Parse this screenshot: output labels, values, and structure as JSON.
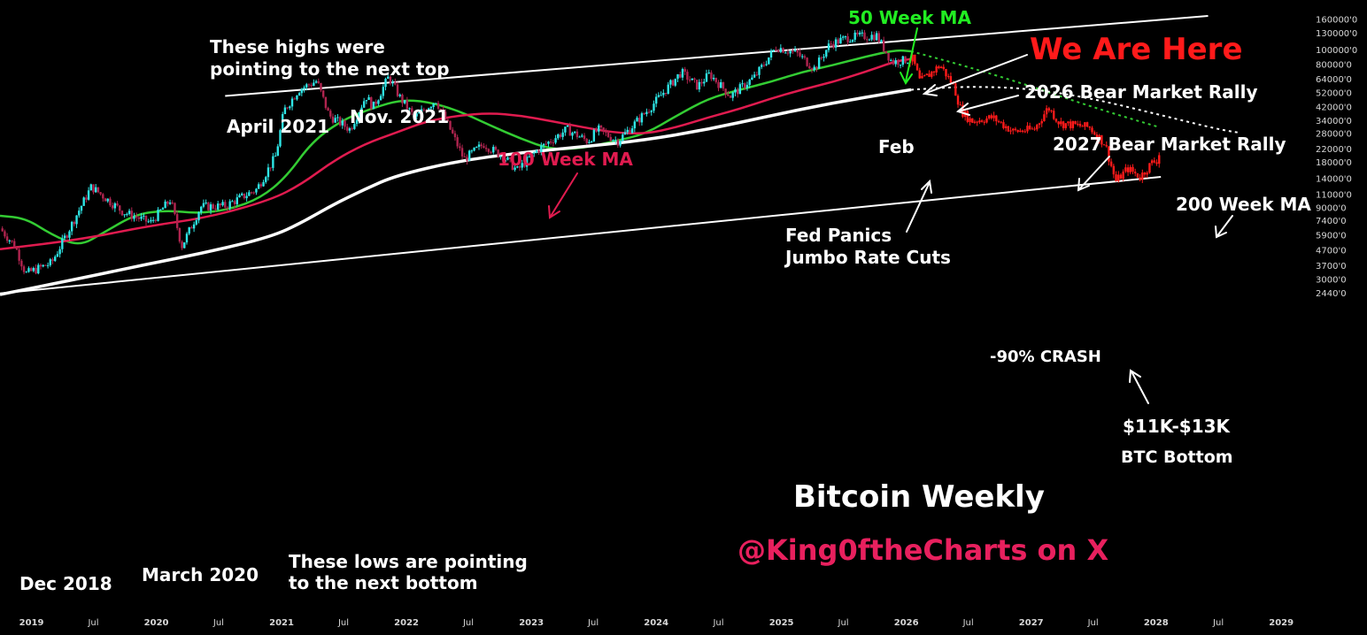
{
  "chart_data": {
    "type": "candlestick",
    "title": "Bitcoin Weekly",
    "subtitle": "@King0ftheCharts on X",
    "y_scale": "log",
    "ylim": [
      22000,
      170000000
    ],
    "xlim": [
      "2018-10-01",
      "2029-03-01"
    ],
    "y_ticks": [
      {
        "value": 160000000,
        "label": "160000'0"
      },
      {
        "value": 130000000,
        "label": "130000'0"
      },
      {
        "value": 100000000,
        "label": "100000'0"
      },
      {
        "value": 80000000,
        "label": "80000'0"
      },
      {
        "value": 64000000,
        "label": "64000'0"
      },
      {
        "value": 52000000,
        "label": "52000'0"
      },
      {
        "value": 42000000,
        "label": "42000'0"
      },
      {
        "value": 34000000,
        "label": "34000'0"
      },
      {
        "value": 28000000,
        "label": "28000'0"
      },
      {
        "value": 22000000,
        "label": "22000'0"
      },
      {
        "value": 18000000,
        "label": "18000'0"
      },
      {
        "value": 14000000,
        "label": "14000'0"
      },
      {
        "value": 11000000,
        "label": "11000'0"
      },
      {
        "value": 9000000,
        "label": "9000'0"
      },
      {
        "value": 7400000,
        "label": "7400'0"
      },
      {
        "value": 5900000,
        "label": "5900'0"
      },
      {
        "value": 4700000,
        "label": "4700'0"
      },
      {
        "value": 3700000,
        "label": "3700'0"
      },
      {
        "value": 3000000,
        "label": "3000'0"
      },
      {
        "value": 2440000,
        "label": "2440'0"
      }
    ],
    "x_ticks": [
      {
        "date": "2019-01-01",
        "label": "2019"
      },
      {
        "date": "2019-07-01",
        "label": "Jul"
      },
      {
        "date": "2020-01-01",
        "label": "2020"
      },
      {
        "date": "2020-07-01",
        "label": "Jul"
      },
      {
        "date": "2021-01-01",
        "label": "2021"
      },
      {
        "date": "2021-07-01",
        "label": "Jul"
      },
      {
        "date": "2022-01-01",
        "label": "2022"
      },
      {
        "date": "2022-07-01",
        "label": "Jul"
      },
      {
        "date": "2023-01-01",
        "label": "2023"
      },
      {
        "date": "2023-07-01",
        "label": "Jul"
      },
      {
        "date": "2024-01-01",
        "label": "2024"
      },
      {
        "date": "2024-07-01",
        "label": "Jul"
      },
      {
        "date": "2025-01-01",
        "label": "2025"
      },
      {
        "date": "2025-07-01",
        "label": "Jul"
      },
      {
        "date": "2026-01-01",
        "label": "2026"
      },
      {
        "date": "2026-07-01",
        "label": "Jul"
      },
      {
        "date": "2027-01-01",
        "label": "2027"
      },
      {
        "date": "2027-07-01",
        "label": "Jul"
      },
      {
        "date": "2028-01-01",
        "label": "2028"
      },
      {
        "date": "2028-07-01",
        "label": "Jul"
      },
      {
        "date": "2029-01-01",
        "label": "2029"
      }
    ],
    "price_anchors": [
      [
        "2018-10-01",
        6600000
      ],
      [
        "2018-11-15",
        5000000
      ],
      [
        "2018-12-15",
        3300000
      ],
      [
        "2019-03-01",
        3900000
      ],
      [
        "2019-06-25",
        12500000
      ],
      [
        "2019-09-25",
        8500000
      ],
      [
        "2019-12-15",
        7200000
      ],
      [
        "2020-02-12",
        10300000
      ],
      [
        "2020-03-15",
        5000000
      ],
      [
        "2020-05-10",
        9200000
      ],
      [
        "2020-07-20",
        9300000
      ],
      [
        "2020-10-20",
        12000000
      ],
      [
        "2020-12-15",
        20000000
      ],
      [
        "2021-01-08",
        40000000
      ],
      [
        "2021-02-20",
        55000000
      ],
      [
        "2021-04-14",
        63000000
      ],
      [
        "2021-05-20",
        37000000
      ],
      [
        "2021-07-20",
        30000000
      ],
      [
        "2021-09-05",
        50000000
      ],
      [
        "2021-09-25",
        42000000
      ],
      [
        "2021-11-10",
        67000000
      ],
      [
        "2021-12-15",
        48000000
      ],
      [
        "2022-01-25",
        36000000
      ],
      [
        "2022-03-28",
        47000000
      ],
      [
        "2022-05-12",
        29000000
      ],
      [
        "2022-06-18",
        19000000
      ],
      [
        "2022-08-15",
        24000000
      ],
      [
        "2022-10-20",
        19000000
      ],
      [
        "2022-11-20",
        16000000
      ],
      [
        "2023-01-20",
        22000000
      ],
      [
        "2023-04-15",
        30000000
      ],
      [
        "2023-06-15",
        25000000
      ],
      [
        "2023-07-15",
        30000000
      ],
      [
        "2023-09-10",
        25000000
      ],
      [
        "2023-12-15",
        42000000
      ],
      [
        "2024-03-14",
        72000000
      ],
      [
        "2024-05-01",
        58000000
      ],
      [
        "2024-06-05",
        70000000
      ],
      [
        "2024-08-05",
        50000000
      ],
      [
        "2024-10-15",
        67000000
      ],
      [
        "2024-12-17",
        106000000
      ],
      [
        "2025-02-15",
        96000000
      ],
      [
        "2025-04-08",
        76000000
      ],
      [
        "2025-05-22",
        110000000
      ],
      [
        "2025-07-14",
        122000000
      ],
      [
        "2025-08-14",
        124000000
      ],
      [
        "2025-10-06",
        126000000
      ],
      [
        "2025-11-20",
        84000000
      ],
      [
        "2026-01-20",
        88000000
      ],
      [
        "2026-02-10",
        62000000
      ],
      [
        "2026-04-10",
        80000000
      ],
      [
        "2026-05-20",
        58000000
      ],
      [
        "2026-06-10",
        40000000
      ],
      [
        "2026-07-10",
        34000000
      ],
      [
        "2026-09-10",
        36000000
      ],
      [
        "2026-11-10",
        29000000
      ],
      [
        "2027-01-10",
        30000000
      ],
      [
        "2027-02-20",
        42000000
      ],
      [
        "2027-03-25",
        33000000
      ],
      [
        "2027-06-20",
        31000000
      ],
      [
        "2027-08-05",
        24000000
      ],
      [
        "2027-09-05",
        13500000
      ],
      [
        "2027-10-10",
        16500000
      ],
      [
        "2027-11-15",
        14500000
      ],
      [
        "2027-12-20",
        18000000
      ],
      [
        "2028-01-08",
        19000000
      ],
      [
        "2028-01-15",
        25500000
      ]
    ],
    "series": [
      {
        "name": "50 Week MA",
        "color": "#33cc33",
        "style": "solid",
        "points": [
          [
            "2018-10-01",
            8000000
          ],
          [
            "2018-12-15",
            7700000
          ],
          [
            "2019-03-01",
            6000000
          ],
          [
            "2019-05-20",
            5000000
          ],
          [
            "2019-08-01",
            6200000
          ],
          [
            "2019-11-01",
            8200000
          ],
          [
            "2020-02-01",
            8700000
          ],
          [
            "2020-05-01",
            8300000
          ],
          [
            "2020-08-01",
            8800000
          ],
          [
            "2020-11-01",
            10500000
          ],
          [
            "2021-01-15",
            14500000
          ],
          [
            "2021-04-01",
            25000000
          ],
          [
            "2021-07-01",
            35000000
          ],
          [
            "2021-10-01",
            42000000
          ],
          [
            "2021-12-15",
            47000000
          ],
          [
            "2022-03-01",
            46000000
          ],
          [
            "2022-06-01",
            40000000
          ],
          [
            "2022-09-01",
            32000000
          ],
          [
            "2022-12-01",
            26000000
          ],
          [
            "2023-03-01",
            22000000
          ],
          [
            "2023-06-01",
            22500000
          ],
          [
            "2023-09-01",
            25000000
          ],
          [
            "2023-12-01",
            28000000
          ],
          [
            "2024-03-01",
            37000000
          ],
          [
            "2024-06-01",
            48000000
          ],
          [
            "2024-09-01",
            55000000
          ],
          [
            "2024-12-01",
            62000000
          ],
          [
            "2025-03-01",
            72000000
          ],
          [
            "2025-06-01",
            80000000
          ],
          [
            "2025-09-01",
            91000000
          ],
          [
            "2025-12-01",
            101000000
          ],
          [
            "2026-01-15",
            99000000
          ]
        ]
      },
      {
        "name": "50 Week MA projection",
        "color": "#33cc33",
        "style": "dotted",
        "points": [
          [
            "2026-01-15",
            99000000
          ],
          [
            "2026-07-01",
            78000000
          ],
          [
            "2027-01-01",
            58000000
          ],
          [
            "2027-07-01",
            42000000
          ],
          [
            "2028-01-10",
            31000000
          ]
        ]
      },
      {
        "name": "100 Week MA",
        "color": "#e01b4f",
        "style": "solid",
        "points": [
          [
            "2018-10-01",
            4800000
          ],
          [
            "2019-06-01",
            5600000
          ],
          [
            "2019-12-01",
            6800000
          ],
          [
            "2020-06-01",
            7800000
          ],
          [
            "2020-12-01",
            10200000
          ],
          [
            "2021-03-01",
            13000000
          ],
          [
            "2021-06-01",
            18500000
          ],
          [
            "2021-09-01",
            24000000
          ],
          [
            "2021-12-01",
            28500000
          ],
          [
            "2022-03-01",
            34000000
          ],
          [
            "2022-06-01",
            37000000
          ],
          [
            "2022-09-01",
            38500000
          ],
          [
            "2022-12-01",
            37000000
          ],
          [
            "2023-03-01",
            34000000
          ],
          [
            "2023-06-01",
            31000000
          ],
          [
            "2023-09-01",
            28500000
          ],
          [
            "2023-12-01",
            28000000
          ],
          [
            "2024-03-01",
            31000000
          ],
          [
            "2024-06-01",
            36000000
          ],
          [
            "2024-09-01",
            41000000
          ],
          [
            "2024-12-01",
            48000000
          ],
          [
            "2025-03-01",
            55000000
          ],
          [
            "2025-06-01",
            62000000
          ],
          [
            "2025-09-01",
            72000000
          ],
          [
            "2025-12-01",
            85000000
          ],
          [
            "2026-01-15",
            88000000
          ]
        ]
      },
      {
        "name": "200 Week MA",
        "color": "#ffffff",
        "style": "solid",
        "points": [
          [
            "2018-10-01",
            2400000
          ],
          [
            "2019-06-01",
            3100000
          ],
          [
            "2019-12-01",
            3800000
          ],
          [
            "2020-06-01",
            4600000
          ],
          [
            "2020-12-01",
            5800000
          ],
          [
            "2021-03-01",
            7200000
          ],
          [
            "2021-06-01",
            9500000
          ],
          [
            "2021-09-01",
            12000000
          ],
          [
            "2021-12-01",
            14800000
          ],
          [
            "2022-06-01",
            18500000
          ],
          [
            "2022-12-01",
            21000000
          ],
          [
            "2023-06-01",
            23000000
          ],
          [
            "2023-12-01",
            25500000
          ],
          [
            "2024-06-01",
            30000000
          ],
          [
            "2024-12-01",
            37000000
          ],
          [
            "2025-06-01",
            45000000
          ],
          [
            "2025-12-01",
            53000000
          ],
          [
            "2026-01-15",
            55000000
          ]
        ]
      },
      {
        "name": "200 Week MA projection",
        "color": "#ffffff",
        "style": "dotted",
        "points": [
          [
            "2026-01-15",
            55000000
          ],
          [
            "2026-07-01",
            58000000
          ],
          [
            "2027-01-01",
            56000000
          ],
          [
            "2027-07-01",
            48000000
          ],
          [
            "2028-01-01",
            38000000
          ],
          [
            "2028-07-01",
            30000000
          ],
          [
            "2028-09-01",
            28500000
          ]
        ]
      }
    ],
    "trendlines": [
      {
        "name": "upper-channel-line",
        "from": [
          "2020-07-20",
          50000000
        ],
        "to": [
          "2028-06-01",
          170000000
        ]
      },
      {
        "name": "lower-channel-line",
        "from": [
          "2018-10-01",
          2440000
        ],
        "to": [
          "2028-01-15",
          14500000
        ]
      }
    ],
    "annotations": {
      "highs_note_line1": "These highs were",
      "highs_note_line2": "pointing to the next top",
      "april_2021": "April 2021",
      "nov_2021": "Nov. 2021",
      "ma100_label": "100 Week MA",
      "ma50_label": "50 Week MA",
      "we_are_here": "We Are Here",
      "rally_2026": "2026 Bear Market Rally",
      "feb": "Feb",
      "rally_2027": "2027 Bear Market Rally",
      "ma200_label": "200 Week MA",
      "fed_line1": "Fed Panics",
      "fed_line2": "Jumbo Rate Cuts",
      "crash": "-90% CRASH",
      "bottom_range": "$11K-$13K",
      "btc_bottom": "BTC Bottom",
      "dec_2018": "Dec 2018",
      "march_2020": "March 2020",
      "lows_note_line1": "These lows are pointing",
      "lows_note_line2": "to the next bottom"
    },
    "colors": {
      "candle_up": "#2ee6e6",
      "candle_down": "#b0244f",
      "candle_projection": "#ff1a1a",
      "we_are_here": "#ff1a1a",
      "ma50": "#33cc33",
      "ma100": "#e01b4f",
      "subtitle": "#e8205e"
    }
  }
}
